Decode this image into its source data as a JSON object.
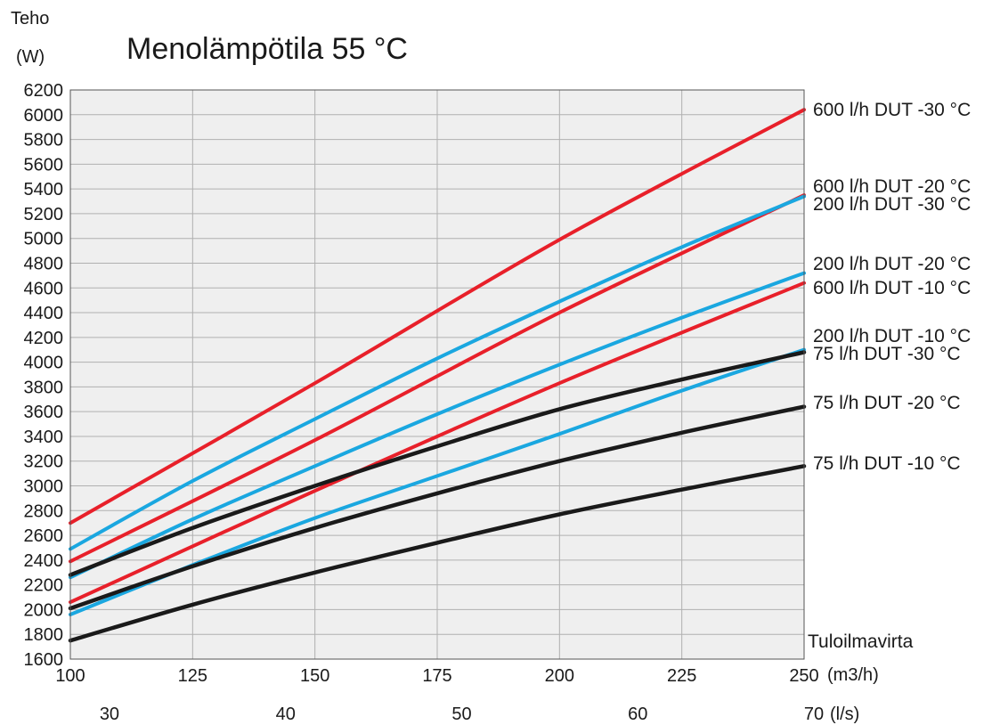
{
  "chart_data": {
    "type": "line",
    "title": "Menolämpötila 55 °C",
    "ylabel_line1": "Teho",
    "ylabel_line2": "(W)",
    "xlabel": "Tuloilmavirta",
    "x_unit": "(m3/h)",
    "x2_unit": "(l/s)",
    "xlim": [
      100,
      250
    ],
    "ylim": [
      1600,
      6200
    ],
    "x_ticks": [
      100,
      125,
      150,
      175,
      200,
      225,
      250
    ],
    "y_ticks": [
      1600,
      1800,
      2000,
      2200,
      2400,
      2600,
      2800,
      3000,
      3200,
      3400,
      3600,
      3800,
      4000,
      4200,
      4400,
      4600,
      4800,
      5000,
      5200,
      5400,
      5600,
      5800,
      6000,
      6200
    ],
    "x2_ticks": [
      {
        "label": "30",
        "x": 108
      },
      {
        "label": "40",
        "x": 144
      },
      {
        "label": "50",
        "x": 180
      },
      {
        "label": "60",
        "x": 216
      },
      {
        "label": "70",
        "x": 252
      }
    ],
    "grid": true,
    "series": [
      {
        "name": "600 l/h DUT -30 °C",
        "color": "#e8202a",
        "x": [
          100,
          150,
          200,
          250
        ],
        "values": [
          2700,
          3830,
          4990,
          6040
        ]
      },
      {
        "name": "600 l/h DUT -20 °C",
        "color": "#e8202a",
        "x": [
          100,
          150,
          200,
          250
        ],
        "values": [
          2390,
          3370,
          4400,
          5350
        ]
      },
      {
        "name": "200 l/h DUT -30 °C",
        "color": "#1aa7e0",
        "x": [
          100,
          125,
          150,
          175,
          200,
          225,
          250
        ],
        "values": [
          2490,
          3040,
          3540,
          4030,
          4490,
          4930,
          5340
        ]
      },
      {
        "name": "200 l/h DUT -20 °C",
        "color": "#1aa7e0",
        "x": [
          100,
          125,
          150,
          175,
          200,
          225,
          250
        ],
        "values": [
          2260,
          2730,
          3160,
          3580,
          3980,
          4360,
          4720
        ]
      },
      {
        "name": "600 l/h DUT -10 °C",
        "color": "#e8202a",
        "x": [
          100,
          150,
          200,
          250
        ],
        "values": [
          2060,
          2960,
          3830,
          4640
        ]
      },
      {
        "name": "200 l/h DUT -10 °C",
        "color": "#1aa7e0",
        "x": [
          100,
          125,
          150,
          175,
          200,
          225,
          250
        ],
        "values": [
          1960,
          2360,
          2740,
          3080,
          3420,
          3770,
          4100
        ]
      },
      {
        "name": "75 l/h DUT -30 °C",
        "color": "#1a1a1a",
        "x": [
          100,
          125,
          150,
          175,
          200,
          225,
          250
        ],
        "values": [
          2280,
          2660,
          3000,
          3320,
          3620,
          3860,
          4080
        ]
      },
      {
        "name": "75 l/h DUT -20 °C",
        "color": "#1a1a1a",
        "x": [
          100,
          125,
          150,
          175,
          200,
          225,
          250
        ],
        "values": [
          2010,
          2350,
          2660,
          2940,
          3200,
          3430,
          3640
        ]
      },
      {
        "name": "75 l/h DUT -10 °C",
        "color": "#1a1a1a",
        "x": [
          100,
          125,
          150,
          175,
          200,
          225,
          250
        ],
        "values": [
          1750,
          2040,
          2300,
          2540,
          2770,
          2970,
          3160
        ]
      }
    ]
  }
}
